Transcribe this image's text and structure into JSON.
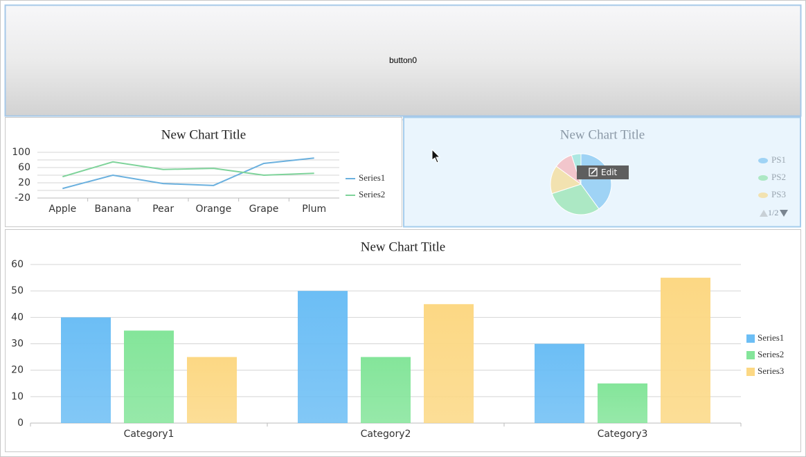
{
  "button": {
    "label": "button0"
  },
  "overlay": {
    "edit": "Edit"
  },
  "chart_data": [
    {
      "type": "line",
      "title": "New Chart Title",
      "categories": [
        "Apple",
        "Banana",
        "Pear",
        "Orange",
        "Grape",
        "Plum"
      ],
      "series": [
        {
          "name": "Series1",
          "color": "#6ab0de",
          "values": [
            5,
            40,
            18,
            13,
            71,
            85
          ]
        },
        {
          "name": "Series2",
          "color": "#7ed39a",
          "values": [
            36,
            75,
            55,
            58,
            40,
            45
          ]
        }
      ],
      "ylim": [
        -20,
        100
      ],
      "yticks": [
        -20,
        20,
        60,
        100
      ],
      "yminorticks": [
        0,
        40,
        80
      ],
      "grid": true,
      "legend": "right"
    },
    {
      "type": "pie",
      "title": "New Chart Title",
      "categories": [
        "PS1",
        "PS2",
        "PS3",
        null,
        null
      ],
      "values": [
        40,
        30,
        15,
        10,
        5
      ],
      "colors": [
        "#9fd3f5",
        "#ace8c4",
        "#f2e2b0",
        "#f2c6cc",
        "#ade8e2"
      ],
      "legend": "right",
      "legend_page": "1/2"
    },
    {
      "type": "bar",
      "title": "New Chart Title",
      "categories": [
        "Category1",
        "Category2",
        "Category3"
      ],
      "series": [
        {
          "name": "Series1",
          "color": "#6cbef5",
          "values": [
            40,
            50,
            30
          ]
        },
        {
          "name": "Series2",
          "color": "#84e59a",
          "values": [
            35,
            25,
            15
          ]
        },
        {
          "name": "Series3",
          "color": "#fcd884",
          "values": [
            25,
            45,
            55
          ]
        }
      ],
      "ylim": [
        0,
        60
      ],
      "yticks": [
        0,
        10,
        20,
        30,
        40,
        50,
        60
      ],
      "grid": true,
      "legend": "right"
    }
  ]
}
